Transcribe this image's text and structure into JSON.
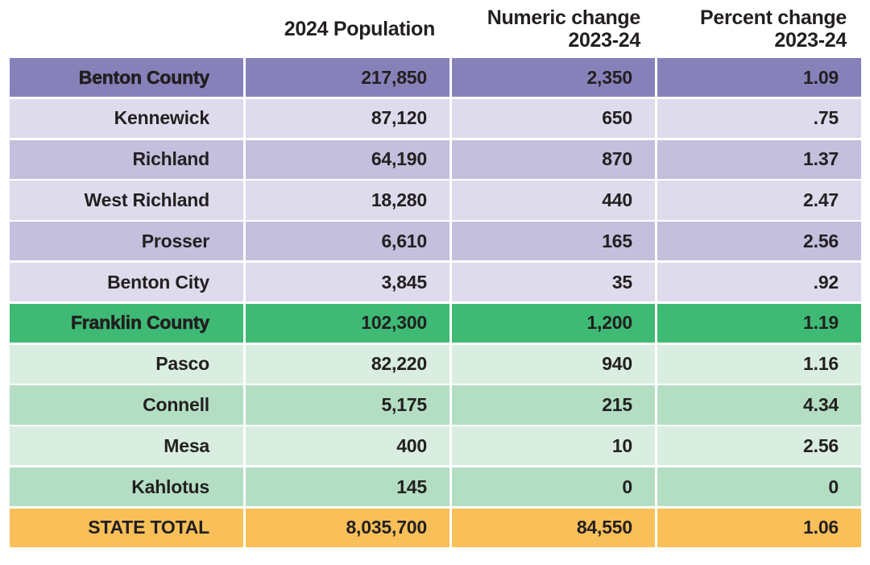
{
  "table": {
    "headers": [
      "",
      "2024 Population",
      "Numeric change\n2023-24",
      "Percent change\n2023-24"
    ],
    "rows": [
      {
        "name": "Benton County",
        "population": "217,850",
        "numeric_change": "2,350",
        "percent_change": "1.09"
      },
      {
        "name": "Kennewick",
        "population": "87,120",
        "numeric_change": "650",
        "percent_change": ".75"
      },
      {
        "name": "Richland",
        "population": "64,190",
        "numeric_change": "870",
        "percent_change": "1.37"
      },
      {
        "name": "West Richland",
        "population": "18,280",
        "numeric_change": "440",
        "percent_change": "2.47"
      },
      {
        "name": "Prosser",
        "population": "6,610",
        "numeric_change": "165",
        "percent_change": "2.56"
      },
      {
        "name": "Benton City",
        "population": "3,845",
        "numeric_change": "35",
        "percent_change": ".92"
      },
      {
        "name": "Franklin County",
        "population": "102,300",
        "numeric_change": "1,200",
        "percent_change": "1.19"
      },
      {
        "name": "Pasco",
        "population": "82,220",
        "numeric_change": "940",
        "percent_change": "1.16"
      },
      {
        "name": "Connell",
        "population": "5,175",
        "numeric_change": "215",
        "percent_change": "4.34"
      },
      {
        "name": "Mesa",
        "population": "400",
        "numeric_change": "10",
        "percent_change": "2.56"
      },
      {
        "name": "Kahlotus",
        "population": "145",
        "numeric_change": "0",
        "percent_change": "0"
      },
      {
        "name": "STATE TOTAL",
        "population": "8,035,700",
        "numeric_change": "84,550",
        "percent_change": "1.06"
      }
    ]
  },
  "colors": {
    "county_purple": "#8781ba",
    "purple_light": "#dedbec",
    "purple_medium": "#c3bfdc",
    "county_green": "#3eba75",
    "green_light": "#d9eee0",
    "green_medium": "#b3dec3",
    "total_orange": "#f9c05a",
    "text": "#231f20",
    "background": "#ffffff"
  },
  "chart_data": {
    "type": "table",
    "title": "",
    "columns": [
      "",
      "2024 Population",
      "Numeric change 2023-24",
      "Percent change 2023-24"
    ],
    "rows": [
      [
        "Benton County",
        217850,
        2350,
        1.09
      ],
      [
        "Kennewick",
        87120,
        650,
        0.75
      ],
      [
        "Richland",
        64190,
        870,
        1.37
      ],
      [
        "West Richland",
        18280,
        440,
        2.47
      ],
      [
        "Prosser",
        6610,
        165,
        2.56
      ],
      [
        "Benton City",
        3845,
        35,
        0.92
      ],
      [
        "Franklin County",
        102300,
        1200,
        1.19
      ],
      [
        "Pasco",
        82220,
        940,
        1.16
      ],
      [
        "Connell",
        5175,
        215,
        4.34
      ],
      [
        "Mesa",
        400,
        10,
        2.56
      ],
      [
        "Kahlotus",
        145,
        0,
        0
      ],
      [
        "STATE TOTAL",
        8035700,
        84550,
        1.06
      ]
    ],
    "notes": "County rows and STATE TOTAL are emphasis bands; cities alternate light/medium shades within each county section"
  }
}
